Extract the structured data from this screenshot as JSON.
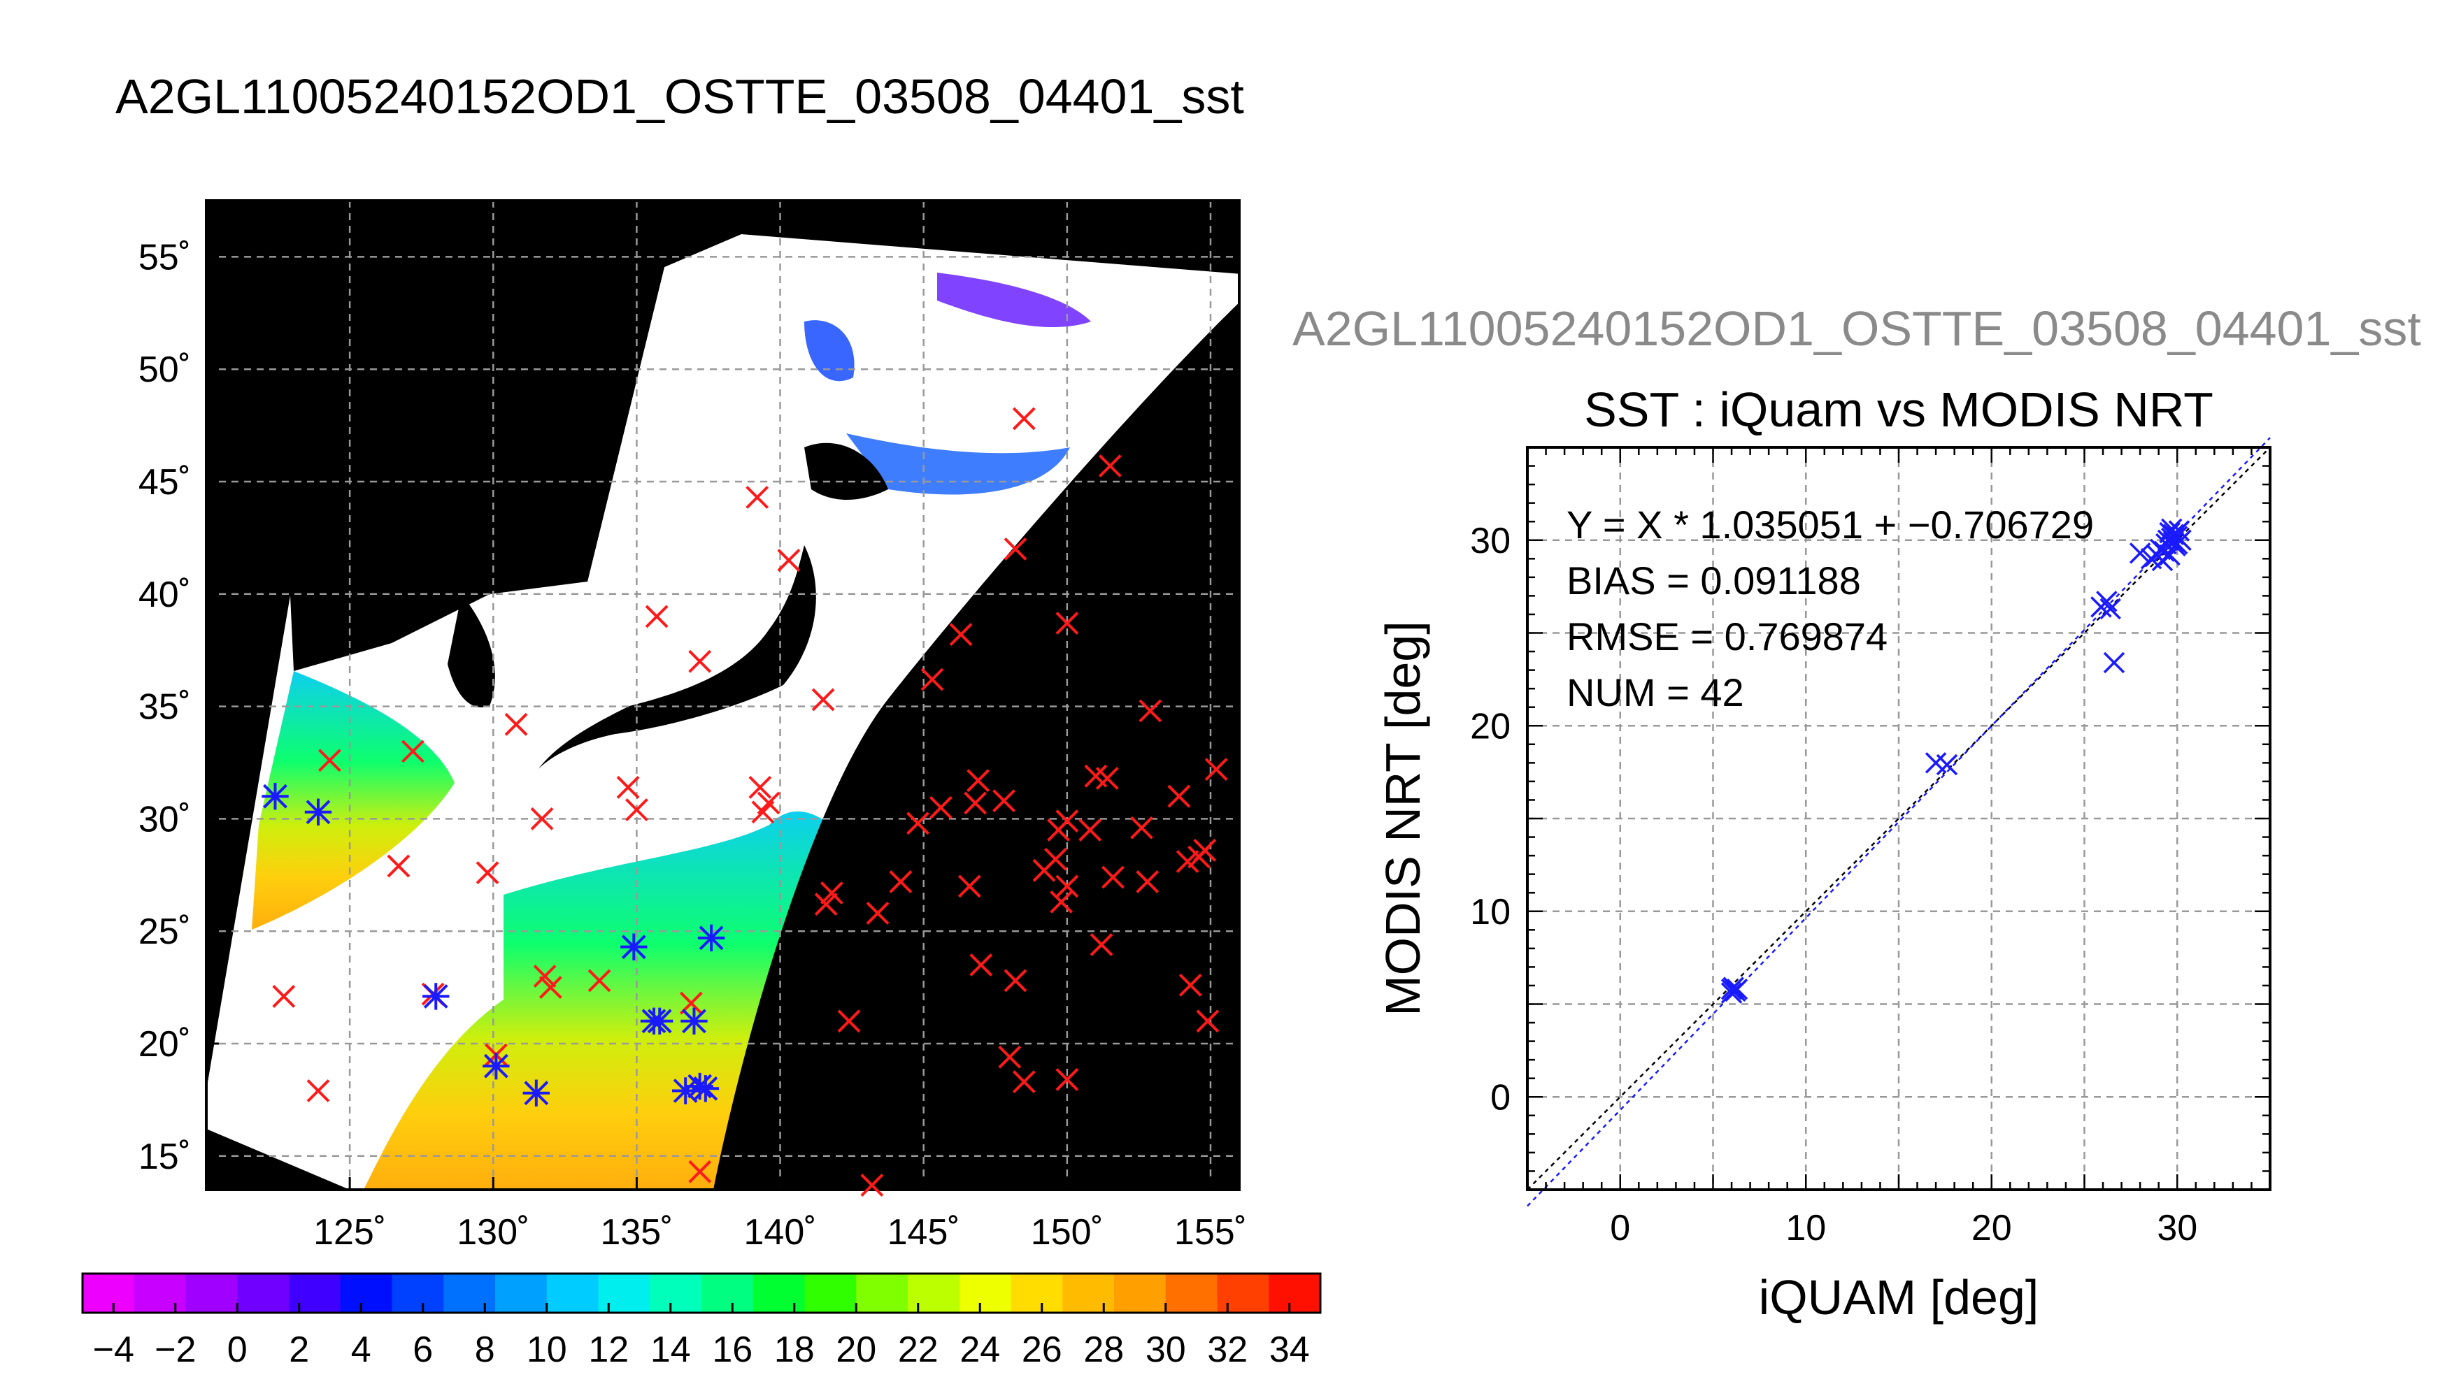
{
  "page_title": "A2GL11005240152OD1_OSTTE_03508_04401_sst",
  "colors": {
    "land": "#000000",
    "cloud": "#ffffff",
    "grid": "#999999",
    "marker_red": "#ff1a1a",
    "marker_blue": "#1a1aff",
    "fit_line": "#000044",
    "identity_line": "#000000"
  },
  "chart_data": [
    {
      "type": "map",
      "title": "",
      "xlabel": "",
      "ylabel": "",
      "lon_ticks": [
        "125˚",
        "130˚",
        "135˚",
        "140˚",
        "145˚",
        "150˚",
        "155˚"
      ],
      "lat_ticks": [
        "15˚",
        "20˚",
        "25˚",
        "30˚",
        "35˚",
        "40˚",
        "45˚",
        "50˚",
        "55˚"
      ],
      "lon_range": [
        120,
        156
      ],
      "lat_range": [
        13.5,
        57.5
      ],
      "colorbar": {
        "labels": [
          "−4",
          "−2",
          "0",
          "2",
          "4",
          "6",
          "8",
          "10",
          "12",
          "14",
          "16",
          "18",
          "20",
          "22",
          "24",
          "26",
          "28",
          "30",
          "32",
          "34"
        ],
        "range": [
          -5,
          35
        ],
        "colors": [
          "#ee00ff",
          "#c800ff",
          "#a000ff",
          "#7000ff",
          "#4000ff",
          "#0010ff",
          "#0040ff",
          "#0070ff",
          "#00a0ff",
          "#00ccff",
          "#00eeee",
          "#00ffbb",
          "#00ff80",
          "#00ff30",
          "#30ff00",
          "#80ff00",
          "#bbff00",
          "#eeff00",
          "#ffdd00",
          "#ffbb00",
          "#ffa000",
          "#ff7000",
          "#ff4000",
          "#ff1000"
        ]
      },
      "red_matchups": [
        [
          148.5,
          47.8
        ],
        [
          151.5,
          45.7
        ],
        [
          139.2,
          44.3
        ],
        [
          140.3,
          41.5
        ],
        [
          148.2,
          42.0
        ],
        [
          135.7,
          39.0
        ],
        [
          146.3,
          38.2
        ],
        [
          150.0,
          38.7
        ],
        [
          137.2,
          37.0
        ],
        [
          141.5,
          35.3
        ],
        [
          145.3,
          36.2
        ],
        [
          152.9,
          34.8
        ],
        [
          124.3,
          32.6
        ],
        [
          127.2,
          33.0
        ],
        [
          130.8,
          34.2
        ],
        [
          134.7,
          31.4
        ],
        [
          135.0,
          30.4
        ],
        [
          139.3,
          31.4
        ],
        [
          139.6,
          30.7
        ],
        [
          139.4,
          30.3
        ],
        [
          131.7,
          30.0
        ],
        [
          129.8,
          27.6
        ],
        [
          126.7,
          27.9
        ],
        [
          145.6,
          30.5
        ],
        [
          144.8,
          29.8
        ],
        [
          146.9,
          31.7
        ],
        [
          146.8,
          30.7
        ],
        [
          147.8,
          30.8
        ],
        [
          149.7,
          29.5
        ],
        [
          150.0,
          29.9
        ],
        [
          151.4,
          31.8
        ],
        [
          151.0,
          31.9
        ],
        [
          150.8,
          29.5
        ],
        [
          152.6,
          29.6
        ],
        [
          153.9,
          31.0
        ],
        [
          155.2,
          32.2
        ],
        [
          149.2,
          27.7
        ],
        [
          149.6,
          28.2
        ],
        [
          150.0,
          27.0
        ],
        [
          149.8,
          26.3
        ],
        [
          151.6,
          27.4
        ],
        [
          152.8,
          27.2
        ],
        [
          154.2,
          28.1
        ],
        [
          154.8,
          28.6
        ],
        [
          154.6,
          28.3
        ],
        [
          141.8,
          26.7
        ],
        [
          141.6,
          26.2
        ],
        [
          143.4,
          25.8
        ],
        [
          144.2,
          27.2
        ],
        [
          146.6,
          27.0
        ],
        [
          151.2,
          24.4
        ],
        [
          147.0,
          23.5
        ],
        [
          148.2,
          22.8
        ],
        [
          154.3,
          22.6
        ],
        [
          154.9,
          21.0
        ],
        [
          122.7,
          22.1
        ],
        [
          127.9,
          22.2
        ],
        [
          131.8,
          23.0
        ],
        [
          132.0,
          22.5
        ],
        [
          133.7,
          22.8
        ],
        [
          136.9,
          21.8
        ],
        [
          142.4,
          21.0
        ],
        [
          148.0,
          19.4
        ],
        [
          148.5,
          18.3
        ],
        [
          150.0,
          18.4
        ],
        [
          123.9,
          17.9
        ],
        [
          130.1,
          19.5
        ],
        [
          143.2,
          13.7
        ],
        [
          137.2,
          14.3
        ]
      ],
      "blue_matchups": [
        [
          122.4,
          31.0
        ],
        [
          123.9,
          30.3
        ],
        [
          128.0,
          22.1
        ],
        [
          130.1,
          19.0
        ],
        [
          131.5,
          17.8
        ],
        [
          134.9,
          24.3
        ],
        [
          135.6,
          21.0
        ],
        [
          135.8,
          21.0
        ],
        [
          137.0,
          21.0
        ],
        [
          137.6,
          24.7
        ],
        [
          136.7,
          17.9
        ],
        [
          137.4,
          18.0
        ],
        [
          137.2,
          18.1
        ]
      ]
    },
    {
      "type": "scatter",
      "title": "SST : iQuam vs MODIS NRT",
      "subtitle": "A2GL11005240152OD1_OSTTE_03508_04401_sst",
      "xlabel": "iQUAM [deg]",
      "ylabel": "MODIS NRT [deg]",
      "xlim": [
        -5,
        35
      ],
      "ylim": [
        -5,
        35
      ],
      "x_ticks": [
        "0",
        "10",
        "20",
        "30"
      ],
      "y_ticks": [
        "0",
        "10",
        "20",
        "30"
      ],
      "grid": true,
      "stats": {
        "fit": "Y = X * 1.035051 + −0.706729",
        "bias": "BIAS = 0.091188",
        "rmse": "RMSE = 0.769874",
        "num": "NUM = 42"
      },
      "fit_slope": 1.035051,
      "fit_intercept": -0.706729,
      "points": [
        [
          6.0,
          5.8
        ],
        [
          6.2,
          5.7
        ],
        [
          6.1,
          5.9
        ],
        [
          6.3,
          5.8
        ],
        [
          6.0,
          5.6
        ],
        [
          17.0,
          18.0
        ],
        [
          17.6,
          17.9
        ],
        [
          25.9,
          26.4
        ],
        [
          26.2,
          26.7
        ],
        [
          26.4,
          26.3
        ],
        [
          26.6,
          23.4
        ],
        [
          28.0,
          29.3
        ],
        [
          28.6,
          29.0
        ],
        [
          28.9,
          29.2
        ],
        [
          29.2,
          28.9
        ],
        [
          29.1,
          29.5
        ],
        [
          29.4,
          29.8
        ],
        [
          29.6,
          29.2
        ],
        [
          29.8,
          30.3
        ],
        [
          29.7,
          30.6
        ],
        [
          30.0,
          30.2
        ],
        [
          29.9,
          29.7
        ],
        [
          30.1,
          30.5
        ],
        [
          29.5,
          30.0
        ],
        [
          29.8,
          29.9
        ],
        [
          30.2,
          30.0
        ],
        [
          29.3,
          29.4
        ],
        [
          29.6,
          30.4
        ],
        [
          30.0,
          29.8
        ],
        [
          29.7,
          30.1
        ]
      ]
    }
  ]
}
